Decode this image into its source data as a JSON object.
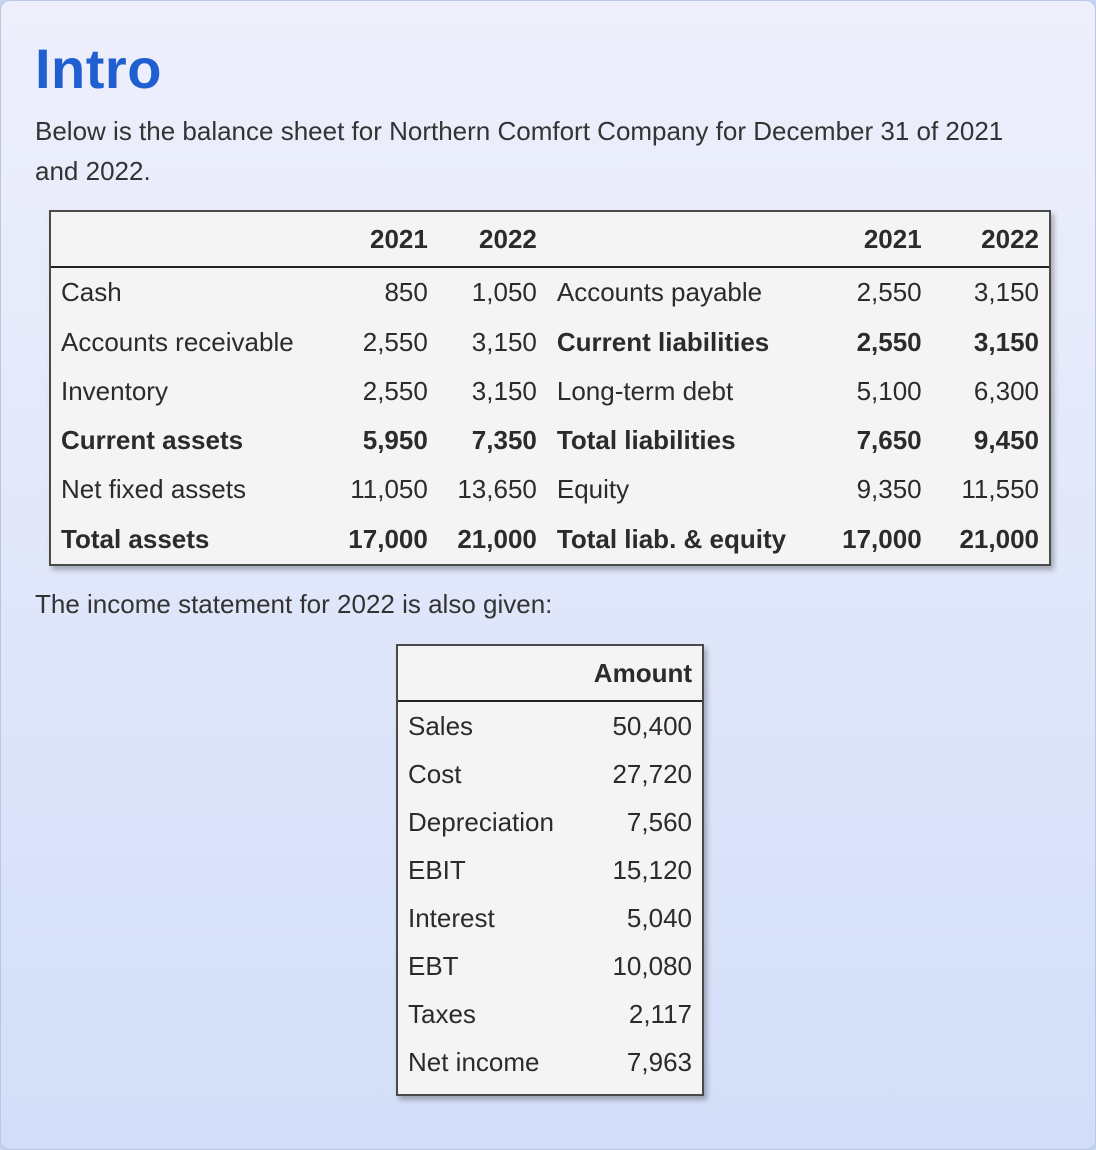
{
  "title": "Intro",
  "intro_text": "Below is the balance sheet for Northern Comfort Company for December 31 of 2021 and 2022.",
  "balance_sheet": {
    "headers": [
      "",
      "2021",
      "2022",
      "",
      "2021",
      "2022"
    ],
    "rows": [
      {
        "bold": false,
        "cells": [
          "Cash",
          "850",
          "1,050",
          "Accounts payable",
          "2,550",
          "3,150"
        ]
      },
      {
        "bold": false,
        "mixed": true,
        "cells": [
          "Accounts receivable",
          "2,550",
          "3,150",
          "Current liabilities",
          "2,550",
          "3,150"
        ]
      },
      {
        "bold": false,
        "cells": [
          "Inventory",
          "2,550",
          "3,150",
          "Long-term debt",
          "5,100",
          "6,300"
        ]
      },
      {
        "bold": true,
        "cells": [
          "Current assets",
          "5,950",
          "7,350",
          "Total liabilities",
          "7,650",
          "9,450"
        ]
      },
      {
        "bold": false,
        "cells": [
          "Net fixed assets",
          "11,050",
          "13,650",
          "Equity",
          "9,350",
          "11,550"
        ]
      },
      {
        "bold": true,
        "cells": [
          "Total assets",
          "17,000",
          "21,000",
          "Total liab. & equity",
          "17,000",
          "21,000"
        ]
      }
    ]
  },
  "income_text": "The income statement for 2022 is also given:",
  "income_statement": {
    "headers": [
      "",
      "Amount"
    ],
    "rows": [
      [
        "Sales",
        "50,400"
      ],
      [
        "Cost",
        "27,720"
      ],
      [
        "Depreciation",
        "7,560"
      ],
      [
        "EBIT",
        "15,120"
      ],
      [
        "Interest",
        "5,040"
      ],
      [
        "EBT",
        "10,080"
      ],
      [
        "Taxes",
        "2,117"
      ],
      [
        "Net income",
        "7,963"
      ]
    ]
  }
}
